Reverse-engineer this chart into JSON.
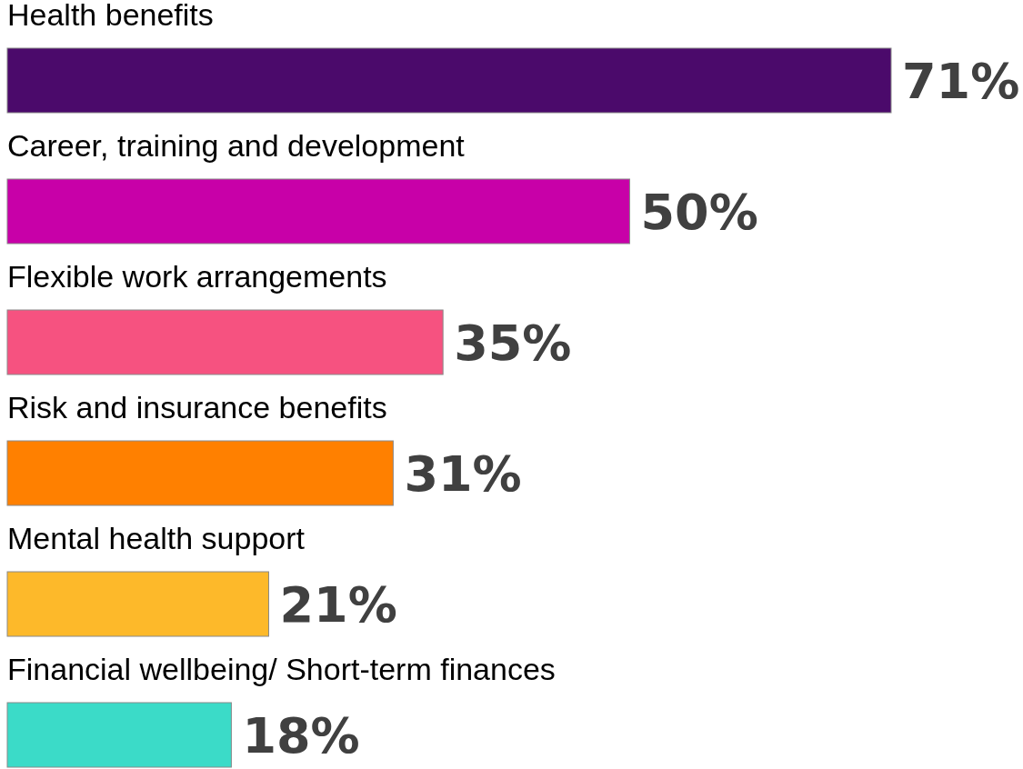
{
  "chart_data": {
    "type": "bar",
    "orientation": "horizontal",
    "categories": [
      "Health benefits",
      "Career, training and development",
      "Flexible work arrangements",
      "Risk and insurance benefits",
      "Mental health support",
      "Financial wellbeing/ Short-term finances"
    ],
    "values": [
      71,
      50,
      35,
      31,
      21,
      18
    ],
    "colors": [
      "#4b0a6b",
      "#c800a8",
      "#f65280",
      "#ff8000",
      "#fdb92a",
      "#3bdbc8"
    ],
    "value_labels": [
      "71%",
      "50%",
      "35%",
      "31%",
      "21%",
      "18%"
    ]
  }
}
